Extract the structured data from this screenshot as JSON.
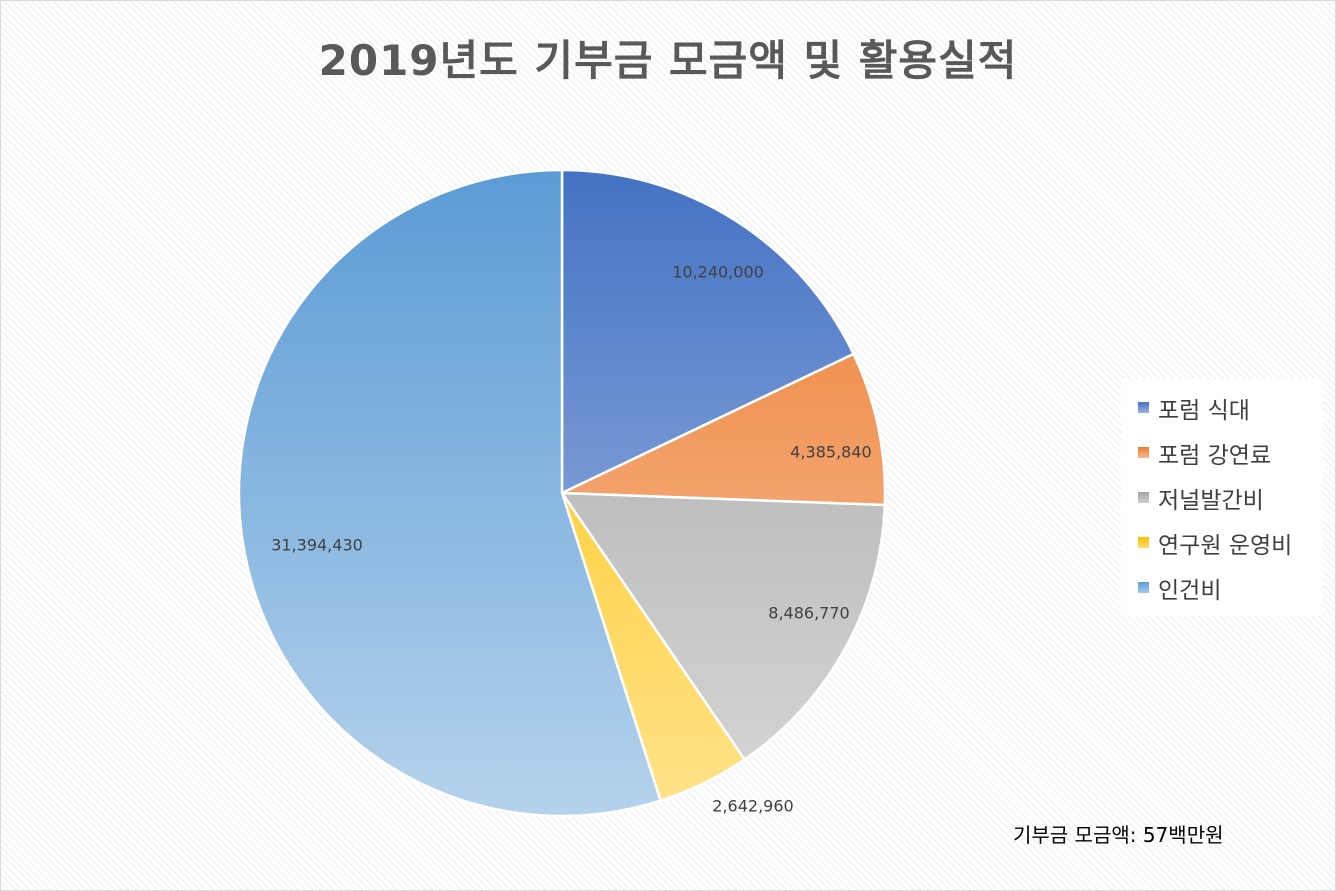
{
  "chart_data": {
    "type": "pie",
    "title": "2019년도 기부금 모금액 및 활용실적",
    "categories": [
      "포럼 식대",
      "포럼 강연료",
      "저널발간비",
      "연구원 운영비",
      "인건비"
    ],
    "values": [
      10240000,
      4385840,
      8486770,
      2642960,
      31394430
    ],
    "data_labels": [
      "10,240,000",
      "4,385,840",
      "8,486,770",
      "2,642,960",
      "31,394,430"
    ],
    "colors": [
      "#4472c4",
      "#ed7d31",
      "#a5a5a5",
      "#ffc000",
      "#5b9bd5"
    ],
    "legend_position": "right",
    "start_angle_deg": 0,
    "direction": "clockwise"
  },
  "footnote": "기부금 모금액: 57백만원"
}
